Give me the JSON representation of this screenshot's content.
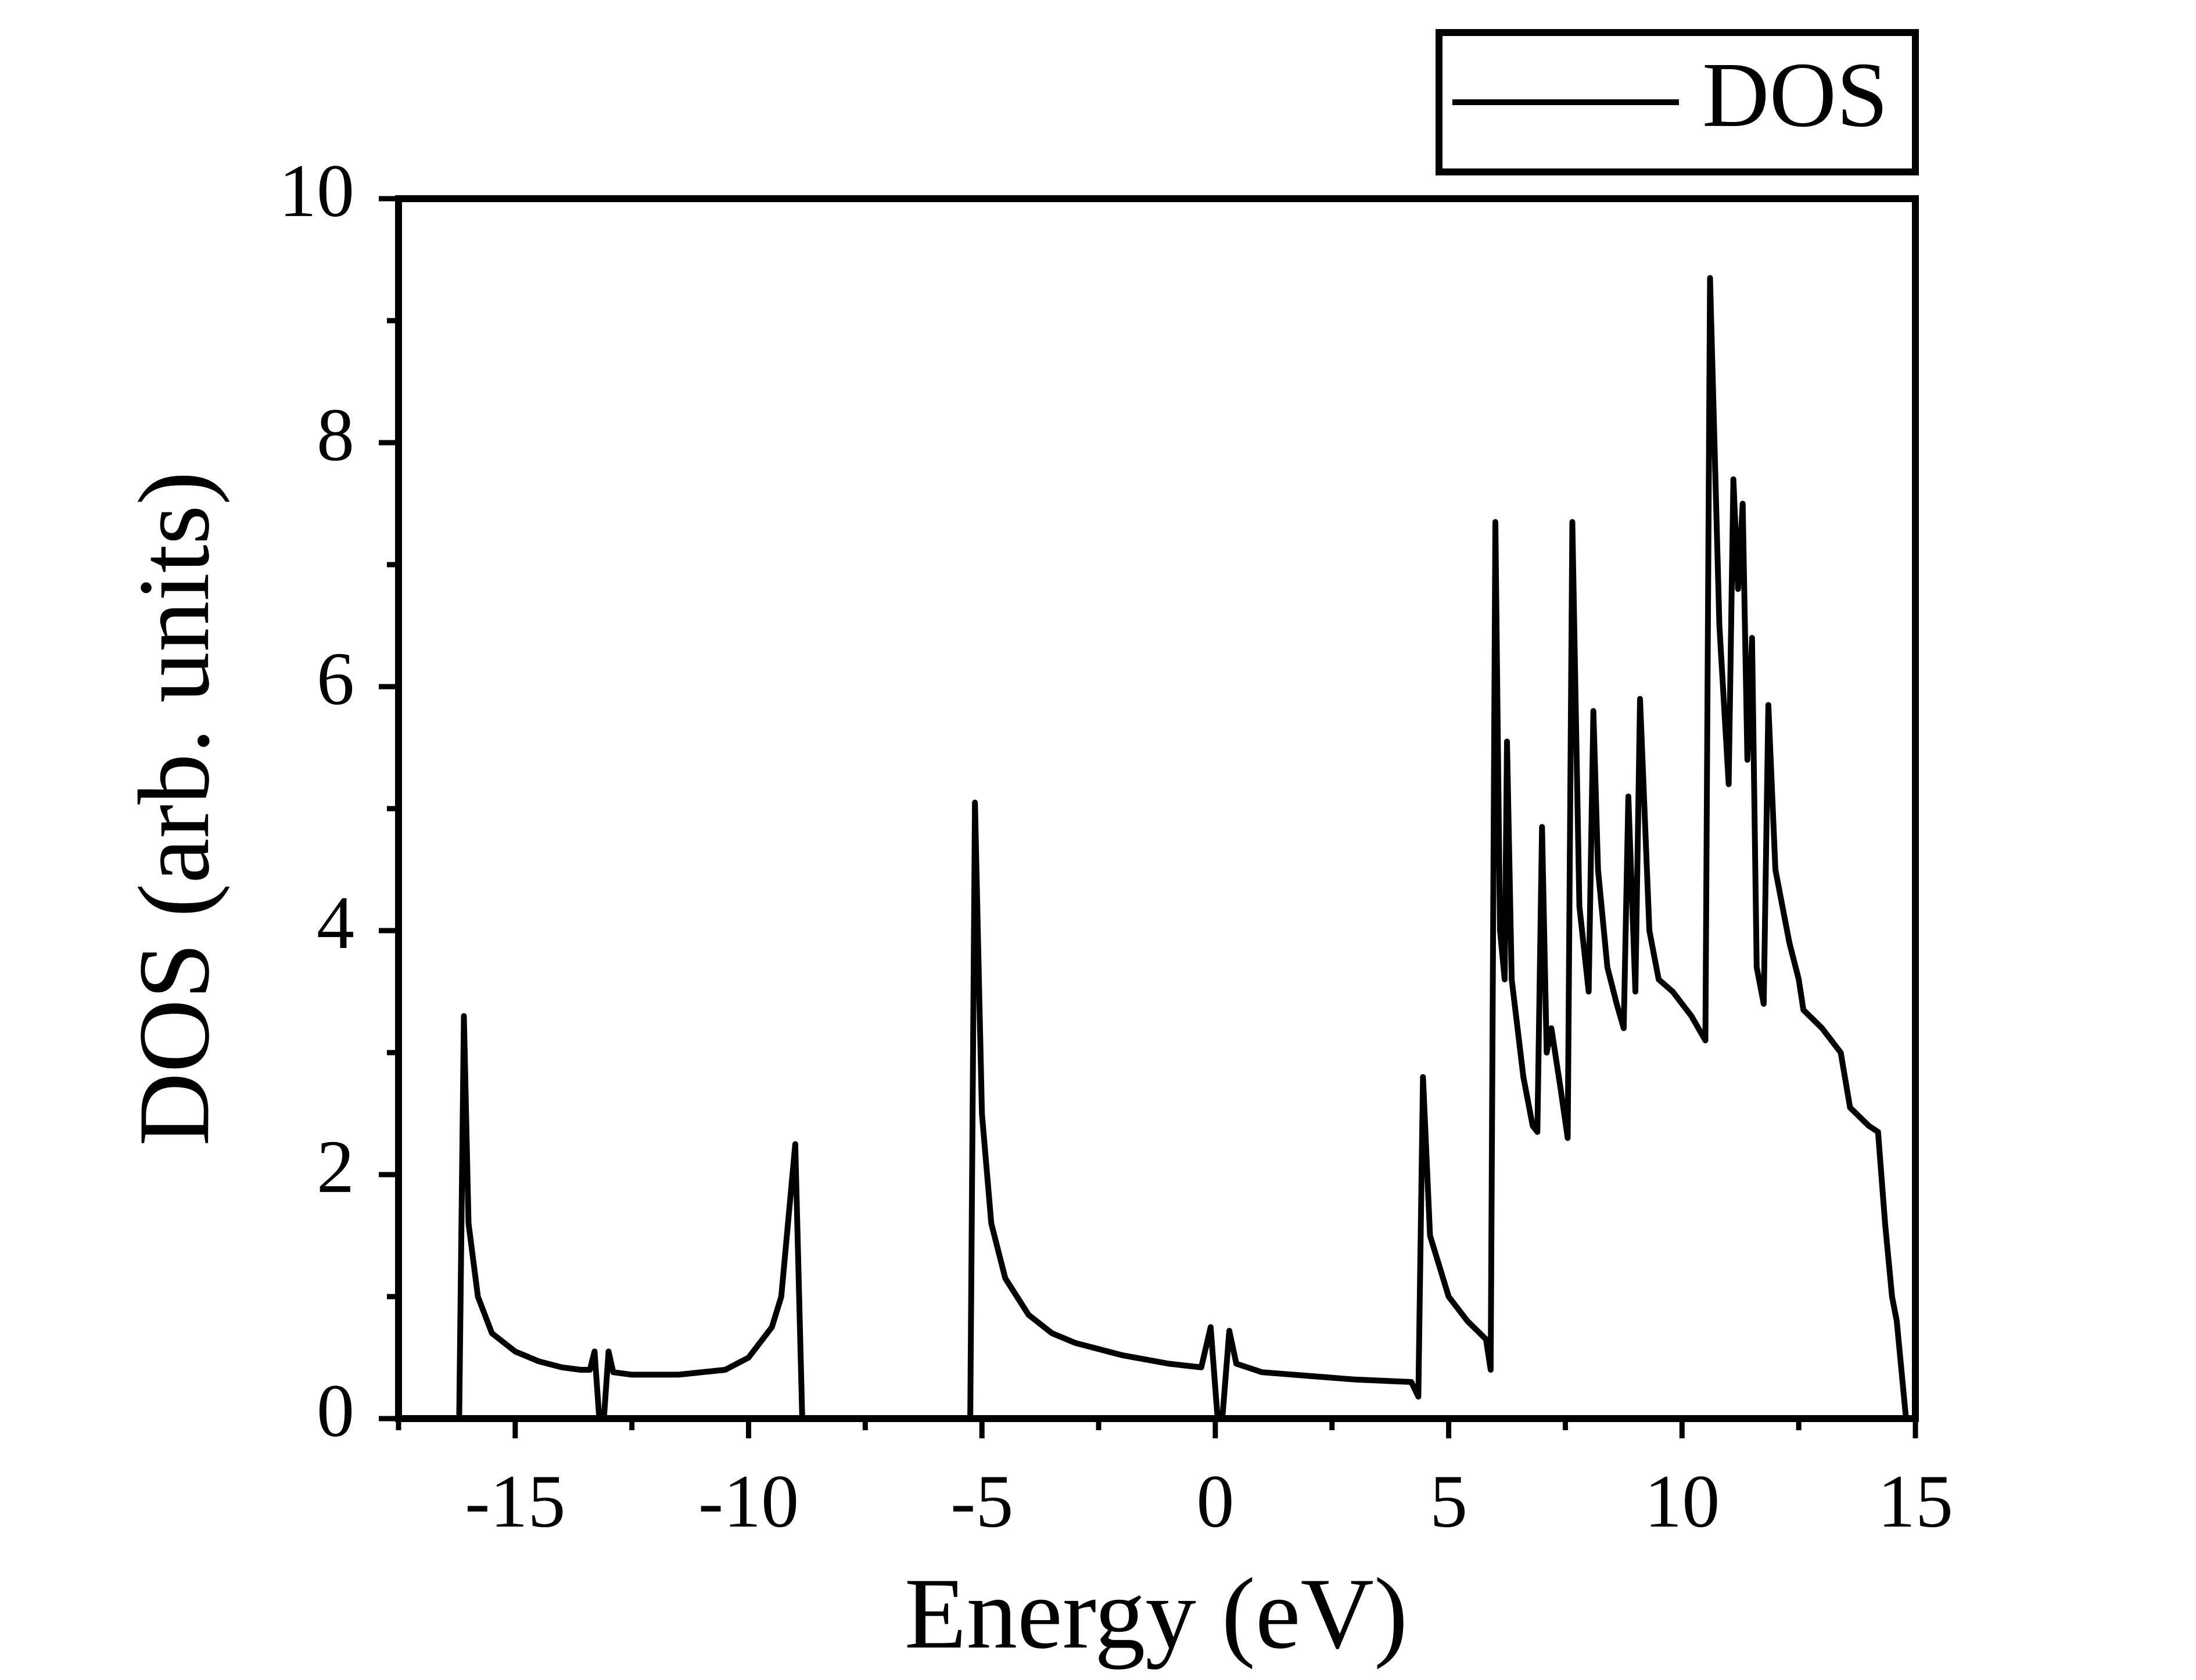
{
  "chart_data": {
    "type": "line",
    "x_label": "Energy (eV)",
    "y_label": "DOS (arb. units)",
    "xlim": [
      -17.5,
      15
    ],
    "ylim": [
      0,
      10
    ],
    "xticks": [
      -15,
      -10,
      -5,
      0,
      5,
      10,
      15
    ],
    "yticks": [
      0,
      2,
      4,
      6,
      8,
      10
    ],
    "legend": "upper right",
    "x": [
      -16.2,
      -16.1,
      -16.0,
      -15.8,
      -15.5,
      -15.0,
      -14.5,
      -14.0,
      -13.6,
      -13.4,
      -13.3,
      -13.2,
      -13.1,
      -13.0,
      -12.9,
      -12.5,
      -11.5,
      -10.5,
      -10.0,
      -9.5,
      -9.3,
      -9.0,
      -8.85,
      -5.25,
      -5.15,
      -5.0,
      -4.8,
      -4.5,
      -4.0,
      -3.5,
      -3.0,
      -2.0,
      -1.0,
      -0.3,
      -0.1,
      0.05,
      0.15,
      0.3,
      0.45,
      1.0,
      2.0,
      3.0,
      4.2,
      4.35,
      4.45,
      4.6,
      5.0,
      5.4,
      5.8,
      5.9,
      6.0,
      6.1,
      6.2,
      6.25,
      6.35,
      6.6,
      6.8,
      6.9,
      7.0,
      7.1,
      7.2,
      7.4,
      7.55,
      7.65,
      7.8,
      8.0,
      8.1,
      8.2,
      8.4,
      8.6,
      8.75,
      8.85,
      9.0,
      9.1,
      9.3,
      9.5,
      9.8,
      10.2,
      10.5,
      10.6,
      10.8,
      11.0,
      11.1,
      11.2,
      11.3,
      11.4,
      11.5,
      11.6,
      11.75,
      11.85,
      12.0,
      12.3,
      12.5,
      12.6,
      13.0,
      13.4,
      13.6,
      14.0,
      14.2,
      14.35,
      14.5,
      14.6,
      14.8
    ],
    "series": [
      {
        "name": "DOS",
        "color": "#000000",
        "values": [
          0,
          3.3,
          1.6,
          1.0,
          0.7,
          0.55,
          0.47,
          0.42,
          0.4,
          0.4,
          0.55,
          0,
          0,
          0.55,
          0.38,
          0.36,
          0.36,
          0.4,
          0.5,
          0.75,
          1.0,
          2.25,
          0,
          0,
          5.05,
          2.5,
          1.6,
          1.15,
          0.85,
          0.7,
          0.62,
          0.52,
          0.45,
          0.42,
          0.75,
          0,
          0,
          0.72,
          0.45,
          0.38,
          0.35,
          0.32,
          0.3,
          0.18,
          2.8,
          1.5,
          1.0,
          0.8,
          0.65,
          0.4,
          7.35,
          4.0,
          3.6,
          5.55,
          3.6,
          2.8,
          2.4,
          2.35,
          4.85,
          3.0,
          3.2,
          2.7,
          2.3,
          7.35,
          4.2,
          3.5,
          5.8,
          4.5,
          3.7,
          3.4,
          3.2,
          5.1,
          3.5,
          5.9,
          4.0,
          3.6,
          3.5,
          3.3,
          3.1,
          9.35,
          6.5,
          5.2,
          7.7,
          6.8,
          7.5,
          5.4,
          6.4,
          3.7,
          3.4,
          5.85,
          4.5,
          3.9,
          3.6,
          3.35,
          3.2,
          3.0,
          2.55,
          2.4,
          2.35,
          1.6,
          1.0,
          0.8,
          0
        ]
      }
    ]
  }
}
